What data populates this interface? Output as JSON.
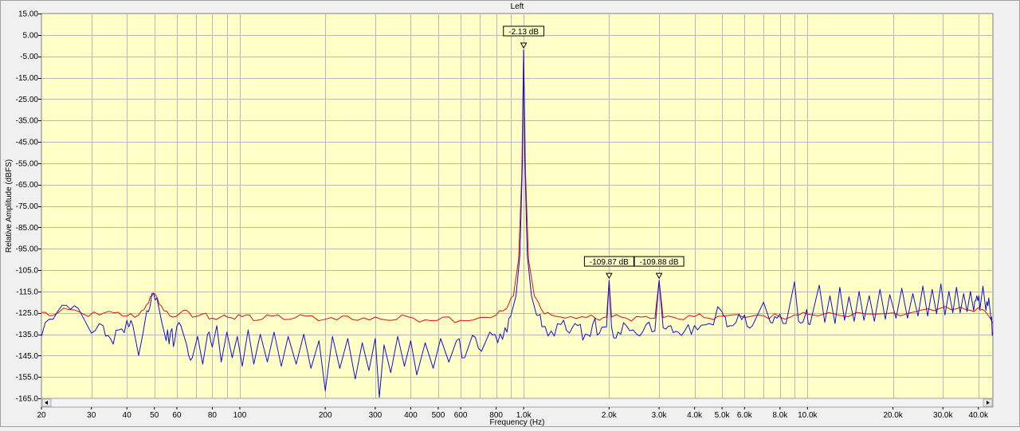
{
  "chart_data": {
    "type": "line",
    "title": "Left",
    "xlabel": "Frequency (Hz)",
    "ylabel": "Relative Amplitude (dBFS)",
    "x_scale": "log",
    "xlim": [
      20,
      45000
    ],
    "ylim": [
      -165,
      15
    ],
    "grid": true,
    "y_ticks": [
      "15.00",
      "5.00",
      "-5.00",
      "-15.00",
      "-25.00",
      "-35.00",
      "-45.00",
      "-55.00",
      "-65.00",
      "-75.00",
      "-85.00",
      "-95.00",
      "-105.0",
      "-115.0",
      "-125.0",
      "-135.0",
      "-145.0",
      "-155.0",
      "-165.0"
    ],
    "y_tick_values": [
      15,
      5,
      -5,
      -15,
      -25,
      -35,
      -45,
      -55,
      -65,
      -75,
      -85,
      -95,
      -105,
      -115,
      -125,
      -135,
      -145,
      -155,
      -165
    ],
    "x_ticks": [
      {
        "value": 20,
        "label": "20"
      },
      {
        "value": 30,
        "label": "30"
      },
      {
        "value": 40,
        "label": "40"
      },
      {
        "value": 50,
        "label": "50"
      },
      {
        "value": 60,
        "label": "60"
      },
      {
        "value": 80,
        "label": "80"
      },
      {
        "value": 100,
        "label": "100"
      },
      {
        "value": 200,
        "label": "200"
      },
      {
        "value": 300,
        "label": "300"
      },
      {
        "value": 400,
        "label": "400"
      },
      {
        "value": 500,
        "label": "500"
      },
      {
        "value": 600,
        "label": "600"
      },
      {
        "value": 800,
        "label": "800"
      },
      {
        "value": 1000,
        "label": "1.0k"
      },
      {
        "value": 2000,
        "label": "2.0k"
      },
      {
        "value": 3000,
        "label": "3.0k"
      },
      {
        "value": 4000,
        "label": "4.0k"
      },
      {
        "value": 5000,
        "label": "5.0k"
      },
      {
        "value": 6000,
        "label": "6.0k"
      },
      {
        "value": 8000,
        "label": "8.0k"
      },
      {
        "value": 10000,
        "label": "10.0k"
      },
      {
        "value": 20000,
        "label": "20.0k"
      },
      {
        "value": 30000,
        "label": "30.0k"
      },
      {
        "value": 40000,
        "label": "40.0k"
      }
    ],
    "x_grid_values": [
      20,
      30,
      40,
      50,
      60,
      70,
      80,
      90,
      100,
      200,
      300,
      400,
      500,
      600,
      700,
      800,
      900,
      1000,
      2000,
      3000,
      4000,
      5000,
      6000,
      7000,
      8000,
      9000,
      10000,
      20000,
      30000,
      40000
    ],
    "series": [
      {
        "color": "#e01010",
        "points": [
          [
            20,
            -124.8
          ],
          [
            22,
            -126.2
          ],
          [
            25,
            -123.5
          ],
          [
            28,
            -125.5
          ],
          [
            32,
            -126.0
          ],
          [
            36,
            -125.0
          ],
          [
            40,
            -126.5
          ],
          [
            44,
            -126.0
          ],
          [
            47,
            -121
          ],
          [
            49,
            -117.0
          ],
          [
            51,
            -117.5
          ],
          [
            54,
            -124
          ],
          [
            58,
            -127
          ],
          [
            63,
            -124
          ],
          [
            68,
            -127
          ],
          [
            74,
            -125.5
          ],
          [
            80,
            -127.5
          ],
          [
            88,
            -126
          ],
          [
            96,
            -128
          ],
          [
            105,
            -126
          ],
          [
            115,
            -128.5
          ],
          [
            130,
            -126.5
          ],
          [
            150,
            -128
          ],
          [
            170,
            -126.5
          ],
          [
            200,
            -128
          ],
          [
            230,
            -126.5
          ],
          [
            260,
            -128.5
          ],
          [
            300,
            -127
          ],
          [
            340,
            -128.5
          ],
          [
            390,
            -126.8
          ],
          [
            450,
            -128.3
          ],
          [
            520,
            -127
          ],
          [
            600,
            -128.5
          ],
          [
            700,
            -127.2
          ],
          [
            800,
            -126.0
          ],
          [
            870,
            -123.0
          ],
          [
            920,
            -117.0
          ],
          [
            960,
            -100.0
          ],
          [
            985,
            -60.0
          ],
          [
            1000,
            -2.13
          ],
          [
            1015,
            -60.0
          ],
          [
            1040,
            -100.0
          ],
          [
            1090,
            -117.0
          ],
          [
            1150,
            -123.0
          ],
          [
            1250,
            -126.0
          ],
          [
            1400,
            -127.5
          ],
          [
            1600,
            -126.8
          ],
          [
            1800,
            -127.8
          ],
          [
            1960,
            -127.0
          ],
          [
            2000,
            -109.87
          ],
          [
            2040,
            -127.0
          ],
          [
            2300,
            -127.5
          ],
          [
            2600,
            -127.0
          ],
          [
            2900,
            -127.5
          ],
          [
            3000,
            -109.88
          ],
          [
            3100,
            -127.3
          ],
          [
            3500,
            -127.8
          ],
          [
            4000,
            -126.8
          ],
          [
            4500,
            -127.5
          ],
          [
            5000,
            -126.5
          ],
          [
            6000,
            -127.2
          ],
          [
            7000,
            -126.3
          ],
          [
            8000,
            -127.0
          ],
          [
            9000,
            -126.0
          ],
          [
            10000,
            -125.6
          ],
          [
            13000,
            -126.2
          ],
          [
            16000,
            -125.5
          ],
          [
            20000,
            -125.0
          ],
          [
            24000,
            -124.5
          ],
          [
            28000,
            -124.0
          ],
          [
            32000,
            -123.5
          ],
          [
            36000,
            -123.5
          ],
          [
            40000,
            -122.5
          ],
          [
            42000,
            -124
          ],
          [
            45000,
            -130
          ]
        ]
      },
      {
        "color": "#1010d0",
        "points": [
          [
            20,
            -136
          ],
          [
            22,
            -128
          ],
          [
            24.5,
            -121.5
          ],
          [
            27,
            -123
          ],
          [
            30,
            -134.5
          ],
          [
            33,
            -131
          ],
          [
            35,
            -137
          ],
          [
            37.5,
            -133
          ],
          [
            40,
            -128.5
          ],
          [
            42,
            -131
          ],
          [
            44,
            -145
          ],
          [
            45.5,
            -135
          ],
          [
            47,
            -124
          ],
          [
            49,
            -116.0
          ],
          [
            51,
            -118
          ],
          [
            53,
            -129
          ],
          [
            55,
            -138
          ],
          [
            57,
            -134
          ],
          [
            59,
            -138
          ],
          [
            62,
            -131
          ],
          [
            65,
            -140
          ],
          [
            68,
            -146
          ],
          [
            71,
            -136
          ],
          [
            74,
            -149
          ],
          [
            77,
            -135
          ],
          [
            80,
            -141
          ],
          [
            83,
            -131
          ],
          [
            86,
            -148
          ],
          [
            90,
            -134
          ],
          [
            94,
            -146
          ],
          [
            98,
            -136
          ],
          [
            102,
            -150
          ],
          [
            107,
            -133
          ],
          [
            112,
            -149
          ],
          [
            118,
            -135
          ],
          [
            125,
            -148
          ],
          [
            132,
            -134
          ],
          [
            140,
            -150
          ],
          [
            148,
            -136
          ],
          [
            158,
            -149
          ],
          [
            168,
            -135
          ],
          [
            178,
            -151
          ],
          [
            190,
            -138
          ],
          [
            200,
            -161.5
          ],
          [
            212,
            -136
          ],
          [
            225,
            -151
          ],
          [
            240,
            -137
          ],
          [
            255,
            -156
          ],
          [
            270,
            -139
          ],
          [
            285,
            -152
          ],
          [
            300,
            -137
          ],
          [
            310,
            -164.5
          ],
          [
            322,
            -140
          ],
          [
            340,
            -153
          ],
          [
            360,
            -136
          ],
          [
            380,
            -150
          ],
          [
            400,
            -138
          ],
          [
            420,
            -154
          ],
          [
            450,
            -139
          ],
          [
            480,
            -151
          ],
          [
            510,
            -137
          ],
          [
            545,
            -148
          ],
          [
            580,
            -138
          ],
          [
            620,
            -146
          ],
          [
            660,
            -135.5
          ],
          [
            710,
            -143
          ],
          [
            760,
            -134
          ],
          [
            810,
            -139
          ],
          [
            860,
            -132
          ],
          [
            900,
            -126.5
          ],
          [
            940,
            -117.0
          ],
          [
            970,
            -98.0
          ],
          [
            990,
            -55.0
          ],
          [
            1000,
            -2.13
          ],
          [
            1010,
            -55.0
          ],
          [
            1030,
            -98.0
          ],
          [
            1065,
            -117.0
          ],
          [
            1110,
            -126.0
          ],
          [
            1160,
            -131.5
          ],
          [
            1250,
            -133.5
          ],
          [
            1350,
            -130.5
          ],
          [
            1450,
            -134.5
          ],
          [
            1550,
            -131
          ],
          [
            1650,
            -135
          ],
          [
            1750,
            -130.5
          ],
          [
            1850,
            -134.5
          ],
          [
            1960,
            -131.5
          ],
          [
            2000,
            -109.87
          ],
          [
            2040,
            -131.5
          ],
          [
            2150,
            -134
          ],
          [
            2300,
            -131
          ],
          [
            2500,
            -135
          ],
          [
            2700,
            -130.5
          ],
          [
            2900,
            -133.5
          ],
          [
            3000,
            -109.88
          ],
          [
            3100,
            -132
          ],
          [
            3300,
            -131
          ],
          [
            3500,
            -134
          ],
          [
            3800,
            -130.5
          ],
          [
            4100,
            -133
          ],
          [
            4500,
            -130
          ],
          [
            5000,
            -124.5
          ],
          [
            5200,
            -131.5
          ],
          [
            5600,
            -129.5
          ],
          [
            6000,
            -126
          ],
          [
            6400,
            -131
          ],
          [
            7000,
            -120.0
          ],
          [
            7400,
            -129.5
          ],
          [
            7800,
            -127.5
          ],
          [
            8400,
            -130
          ],
          [
            9000,
            -110.5
          ],
          [
            9300,
            -129
          ],
          [
            9800,
            -126.5
          ],
          [
            10200,
            -130.5
          ],
          [
            11000,
            -112
          ],
          [
            11500,
            -129.5
          ],
          [
            12000,
            -117
          ],
          [
            12500,
            -130
          ],
          [
            13000,
            -113
          ],
          [
            13500,
            -128.5
          ],
          [
            14000,
            -117.5
          ],
          [
            14600,
            -129
          ],
          [
            15200,
            -115
          ],
          [
            15800,
            -128.5
          ],
          [
            16500,
            -117
          ],
          [
            17200,
            -129
          ],
          [
            18000,
            -114
          ],
          [
            18800,
            -128
          ],
          [
            19500,
            -116.5
          ],
          [
            20500,
            -127.5
          ],
          [
            21500,
            -113.5
          ],
          [
            22500,
            -127.5
          ],
          [
            23500,
            -116
          ],
          [
            24500,
            -126.5
          ],
          [
            25500,
            -112.5
          ],
          [
            26500,
            -126.5
          ],
          [
            27500,
            -114
          ],
          [
            28500,
            -125.5
          ],
          [
            29500,
            -111.5
          ],
          [
            30500,
            -126
          ],
          [
            31500,
            -115
          ],
          [
            32500,
            -125
          ],
          [
            33500,
            -113
          ],
          [
            34500,
            -125
          ],
          [
            35500,
            -116
          ],
          [
            36500,
            -124.5
          ],
          [
            37500,
            -115
          ],
          [
            38500,
            -124
          ],
          [
            39500,
            -117
          ],
          [
            40500,
            -123.5
          ],
          [
            41500,
            -112.5
          ],
          [
            42500,
            -124
          ],
          [
            43500,
            -118
          ],
          [
            44300,
            -128
          ],
          [
            45000,
            -134
          ]
        ]
      }
    ],
    "annotations": [
      {
        "text": "-2.13 dB",
        "x": 1000,
        "y": -2.13
      },
      {
        "text": "-109.87 dB",
        "x": 2000,
        "y": -109.87
      },
      {
        "text": "-109.88 dB",
        "x": 3000,
        "y": -109.88
      }
    ]
  }
}
